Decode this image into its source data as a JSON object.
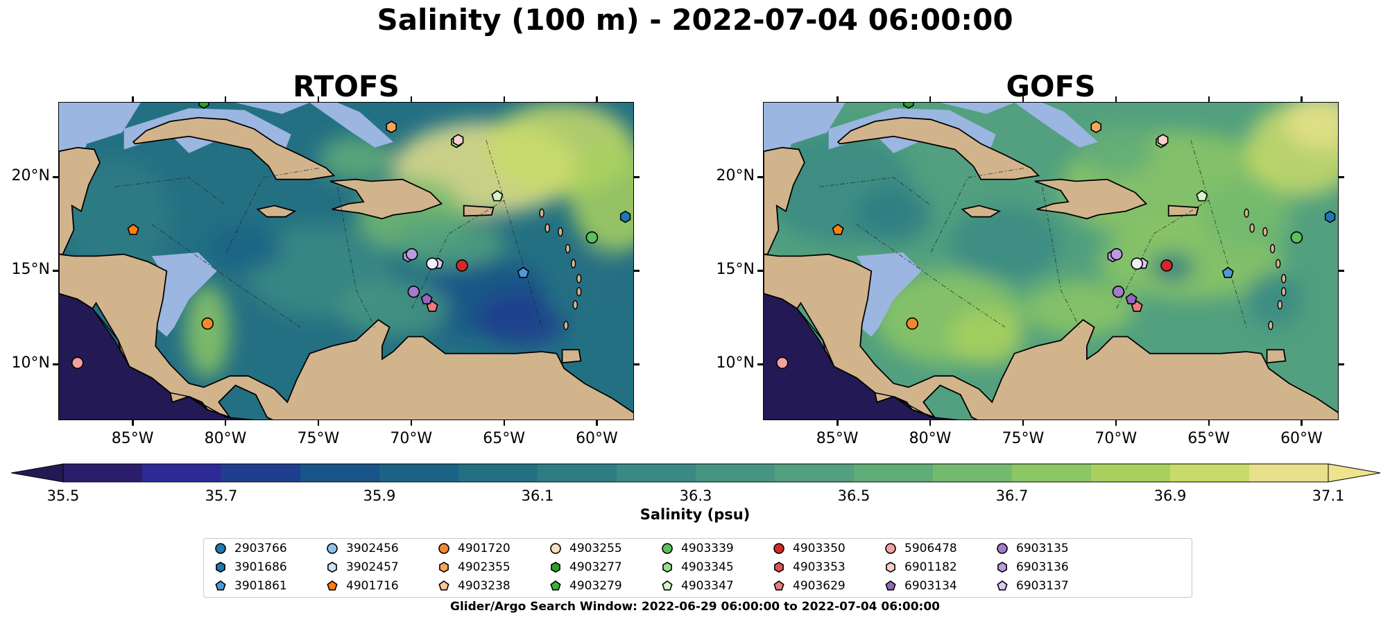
{
  "figure": {
    "title": "Salinity (100 m) - 2022-07-04 06:00:00",
    "legend_title": "Glider/Argo Search Window: 2022-06-29 06:00:00 to 2022-07-04 06:00:00"
  },
  "chart_data": {
    "type": "heatmap",
    "variable": "Salinity (100 m)",
    "time": "2022-07-04 06:00:00",
    "panels": [
      {
        "name": "RTOFS",
        "title": "RTOFS"
      },
      {
        "name": "GOFS",
        "title": "GOFS"
      }
    ],
    "x_range_deg": [
      -89,
      -58
    ],
    "y_range_deg": [
      7,
      24
    ],
    "x_ticks": [
      -85,
      -80,
      -75,
      -70,
      -65,
      -60
    ],
    "x_tick_labels": [
      "85°W",
      "80°W",
      "75°W",
      "70°W",
      "65°W",
      "60°W"
    ],
    "y_ticks": [
      10,
      15,
      20
    ],
    "y_tick_labels": [
      "10°N",
      "15°N",
      "20°N"
    ],
    "colorbar": {
      "label": "Salinity (psu)",
      "min": 35.5,
      "max": 37.1,
      "step": 0.1,
      "extend": "both",
      "ticks": [
        35.5,
        35.7,
        35.9,
        36.1,
        36.3,
        36.5,
        36.7,
        36.9,
        37.1
      ],
      "tick_labels": [
        "35.5",
        "35.7",
        "35.9",
        "36.1",
        "36.3",
        "36.5",
        "36.7",
        "36.9",
        "37.1"
      ],
      "colors": [
        "#2a1e6c",
        "#2c2a94",
        "#1f3f8e",
        "#185487",
        "#1b6385",
        "#247083",
        "#2f7d84",
        "#3a8984",
        "#469583",
        "#52a07f",
        "#60ad78",
        "#73ba6f",
        "#8cc665",
        "#a8d05f",
        "#c8db6a",
        "#e6e18a"
      ],
      "under_color": "#231a55",
      "over_color": "#f0e38e"
    },
    "land_color": "#d2b48c",
    "shelf_color": "#9bb6e0",
    "markers": [
      {
        "id": "2903766",
        "color": "#1f77b4",
        "shape": "circle"
      },
      {
        "id": "3901686",
        "color": "#1f77b4",
        "shape": "hexagon",
        "lon": -58.5,
        "lat": 17.9
      },
      {
        "id": "3901861",
        "color": "#4e9ad6",
        "shape": "pentagon",
        "lon": -64,
        "lat": 14.9
      },
      {
        "id": "3902456",
        "color": "#8fc3ee",
        "shape": "circle"
      },
      {
        "id": "3902457",
        "color": "#cde4f7",
        "shape": "hexagon"
      },
      {
        "id": "4901716",
        "color": "#ff7f0e",
        "shape": "pentagon",
        "lon": -85,
        "lat": 17.2
      },
      {
        "id": "4901720",
        "color": "#f08a2c",
        "shape": "circle",
        "lon": -81,
        "lat": 12.2
      },
      {
        "id": "4902355",
        "color": "#f7a557",
        "shape": "hexagon",
        "lon": -71.1,
        "lat": 22.7
      },
      {
        "id": "4903238",
        "color": "#f8c79a",
        "shape": "pentagon"
      },
      {
        "id": "4903255",
        "color": "#fbe0c0",
        "shape": "circle"
      },
      {
        "id": "4903277",
        "color": "#2ca02c",
        "shape": "hexagon",
        "lon": -81.2,
        "lat": 24
      },
      {
        "id": "4903279",
        "color": "#3fae3f",
        "shape": "pentagon"
      },
      {
        "id": "4903339",
        "color": "#5cc05c",
        "shape": "circle",
        "lon": -60.3,
        "lat": 16.8
      },
      {
        "id": "4903345",
        "color": "#98df8a",
        "shape": "hexagon",
        "lon": -67.6,
        "lat": 21.9
      },
      {
        "id": "4903347",
        "color": "#d4f5c9",
        "shape": "pentagon",
        "lon": -65.4,
        "lat": 19
      },
      {
        "id": "4903350",
        "color": "#d62728",
        "shape": "circle",
        "lon": -67.3,
        "lat": 15.3
      },
      {
        "id": "4903353",
        "color": "#e05456",
        "shape": "hexagon"
      },
      {
        "id": "4903629",
        "color": "#ee7a7c",
        "shape": "pentagon",
        "lon": -68.9,
        "lat": 13.1
      },
      {
        "id": "5906478",
        "color": "#f4a09c",
        "shape": "circle",
        "lon": -88,
        "lat": 10.1
      },
      {
        "id": "6901182",
        "color": "#fbcfcf",
        "shape": "hexagon",
        "lon": -67.5,
        "lat": 22
      },
      {
        "id": "6903134",
        "color": "#9467bd",
        "shape": "pentagon",
        "lon": -69.2,
        "lat": 13.5
      },
      {
        "id": "6903135",
        "color": "#a57bcc",
        "shape": "circle",
        "lon": -69.9,
        "lat": 13.9
      },
      {
        "id": "6903136",
        "color": "#bc9be0",
        "shape": "hexagon",
        "lon": -70.2,
        "lat": 15.8
      },
      {
        "id": "6903137",
        "color": "#dcc8f2",
        "shape": "pentagon",
        "lon": -68.6,
        "lat": 15.4
      }
    ],
    "extra_points": [
      {
        "lon": -70.0,
        "lat": 15.9,
        "color": "#bc9be0",
        "shape": "circle"
      },
      {
        "lon": -68.9,
        "lat": 15.4,
        "color": "#f2eef8",
        "shape": "circle"
      }
    ]
  }
}
